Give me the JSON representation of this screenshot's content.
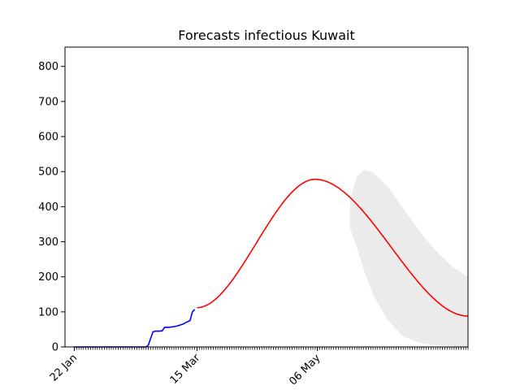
{
  "chart_data": {
    "type": "line",
    "title": "Forecasts infectious Kuwait",
    "xlabel": "",
    "ylabel": "",
    "x_axis": {
      "type": "date",
      "start": "2020-01-18",
      "end": "2020-07-10",
      "tick_labels": [
        {
          "date": "2020-01-22",
          "label": "22 Jan"
        },
        {
          "date": "2020-03-15",
          "label": "15 Mar"
        },
        {
          "date": "2020-05-06",
          "label": "06 May"
        }
      ]
    },
    "ylim": [
      0,
      855
    ],
    "y_ticks": [
      0,
      100,
      200,
      300,
      400,
      500,
      600,
      700,
      800
    ],
    "grid": false,
    "series": [
      {
        "role": "observed",
        "color": "#0000ff",
        "points": [
          [
            "2020-01-22",
            0
          ],
          [
            "2020-01-30",
            0
          ],
          [
            "2020-02-07",
            0
          ],
          [
            "2020-02-15",
            0
          ],
          [
            "2020-02-22",
            0
          ],
          [
            "2020-02-23",
            5
          ],
          [
            "2020-02-24",
            25
          ],
          [
            "2020-02-25",
            43
          ],
          [
            "2020-02-26",
            45
          ],
          [
            "2020-02-27",
            45
          ],
          [
            "2020-02-28",
            45
          ],
          [
            "2020-02-29",
            46
          ],
          [
            "2020-03-01",
            56
          ],
          [
            "2020-03-02",
            56
          ],
          [
            "2020-03-03",
            56
          ],
          [
            "2020-03-04",
            57
          ],
          [
            "2020-03-05",
            58
          ],
          [
            "2020-03-06",
            59
          ],
          [
            "2020-03-07",
            61
          ],
          [
            "2020-03-08",
            63
          ],
          [
            "2020-03-09",
            65
          ],
          [
            "2020-03-10",
            69
          ],
          [
            "2020-03-11",
            72
          ],
          [
            "2020-03-12",
            75
          ],
          [
            "2020-03-13",
            100
          ],
          [
            "2020-03-14",
            107
          ]
        ]
      },
      {
        "role": "forecast",
        "color": "#ff0000",
        "start": "2020-03-15",
        "end": "2020-07-10",
        "start_value": 112,
        "peak_date": "2020-05-05",
        "peak_value": 478,
        "end_value": 88
      }
    ],
    "band": {
      "color": "#ebebeb",
      "upper": [
        [
          "2020-05-20",
          420
        ],
        [
          "2020-05-23",
          485
        ],
        [
          "2020-05-26",
          505
        ],
        [
          "2020-05-30",
          498
        ],
        [
          "2020-06-05",
          460
        ],
        [
          "2020-06-12",
          395
        ],
        [
          "2020-06-19",
          330
        ],
        [
          "2020-06-26",
          275
        ],
        [
          "2020-07-03",
          230
        ],
        [
          "2020-07-10",
          200
        ]
      ],
      "lower": [
        [
          "2020-07-10",
          0
        ],
        [
          "2020-07-03",
          2
        ],
        [
          "2020-06-26",
          5
        ],
        [
          "2020-06-19",
          12
        ],
        [
          "2020-06-12",
          30
        ],
        [
          "2020-06-05",
          80
        ],
        [
          "2020-05-30",
          150
        ],
        [
          "2020-05-26",
          220
        ],
        [
          "2020-05-23",
          285
        ],
        [
          "2020-05-20",
          340
        ]
      ]
    }
  }
}
